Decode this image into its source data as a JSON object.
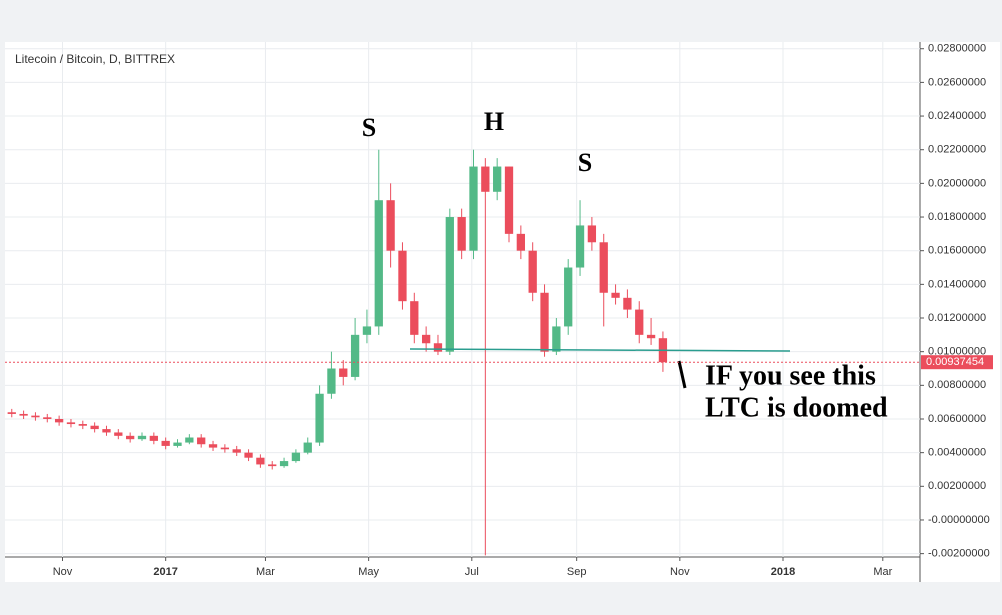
{
  "chart_data": {
    "type": "candlestick",
    "title": "Litecoin / Bitcoin, D, BITTREX",
    "x": [
      -91,
      -84,
      -77,
      -70,
      -63,
      -56,
      -49,
      -42,
      -35,
      -28,
      -21,
      -14,
      -7,
      0,
      7,
      14,
      21,
      28,
      35,
      42,
      49,
      56,
      63,
      70,
      77,
      84,
      91,
      98,
      105,
      112,
      119,
      126,
      133,
      140,
      147,
      154,
      161,
      168,
      175,
      182,
      189,
      196,
      203,
      210,
      217,
      224,
      231,
      238,
      245,
      252,
      259,
      266,
      273,
      280,
      287,
      294
    ],
    "open": [
      0.0064,
      0.0063,
      0.0062,
      0.0061,
      0.006,
      0.0058,
      0.0057,
      0.0056,
      0.0054,
      0.0052,
      0.005,
      0.0048,
      0.005,
      0.0047,
      0.0044,
      0.0046,
      0.0049,
      0.0045,
      0.0043,
      0.0042,
      0.004,
      0.0037,
      0.0033,
      0.0032,
      0.0035,
      0.004,
      0.0046,
      0.0075,
      0.009,
      0.0085,
      0.011,
      0.0115,
      0.019,
      0.016,
      0.013,
      0.011,
      0.0105,
      0.01,
      0.018,
      0.016,
      0.021,
      0.0195,
      0.021,
      0.017,
      0.016,
      0.0135,
      0.01,
      0.0115,
      0.015,
      0.0175,
      0.0165,
      0.0135,
      0.0132,
      0.0125,
      0.011,
      0.0108
    ],
    "high": [
      0.0066,
      0.0065,
      0.0064,
      0.0063,
      0.0062,
      0.006,
      0.0059,
      0.0058,
      0.0056,
      0.0054,
      0.0052,
      0.0052,
      0.0052,
      0.0049,
      0.0048,
      0.0051,
      0.0051,
      0.0047,
      0.0045,
      0.0044,
      0.0042,
      0.0039,
      0.0035,
      0.0037,
      0.0042,
      0.0049,
      0.008,
      0.01,
      0.0095,
      0.012,
      0.0125,
      0.022,
      0.02,
      0.0165,
      0.0135,
      0.0115,
      0.011,
      0.0185,
      0.0185,
      0.022,
      0.0215,
      0.0215,
      0.021,
      0.0175,
      0.0165,
      0.014,
      0.012,
      0.0155,
      0.019,
      0.018,
      0.017,
      0.014,
      0.0137,
      0.013,
      0.012,
      0.0112
    ],
    "low": [
      0.0061,
      0.006,
      0.0059,
      0.0058,
      0.0056,
      0.0055,
      0.0054,
      0.0052,
      0.005,
      0.0048,
      0.0046,
      0.0047,
      0.0045,
      0.0042,
      0.0043,
      0.0045,
      0.0043,
      0.0041,
      0.004,
      0.0038,
      0.0035,
      0.0031,
      0.003,
      0.0031,
      0.0034,
      0.0039,
      0.0044,
      0.0072,
      0.008,
      0.0083,
      0.0105,
      0.011,
      0.015,
      0.0125,
      0.0105,
      0.01,
      0.0098,
      0.0098,
      0.0155,
      0.0155,
      -0.0021,
      0.019,
      0.0165,
      0.0155,
      0.013,
      0.0097,
      0.0098,
      0.011,
      0.0145,
      0.016,
      0.0115,
      0.0128,
      0.012,
      0.0105,
      0.0104,
      0.0088
    ],
    "close": [
      0.0063,
      0.0062,
      0.0061,
      0.006,
      0.0058,
      0.0057,
      0.0056,
      0.0054,
      0.0052,
      0.005,
      0.0048,
      0.005,
      0.0047,
      0.0044,
      0.0046,
      0.0049,
      0.0045,
      0.0043,
      0.0042,
      0.004,
      0.0037,
      0.0033,
      0.0032,
      0.0035,
      0.004,
      0.0046,
      0.0075,
      0.009,
      0.0085,
      0.011,
      0.0115,
      0.019,
      0.016,
      0.013,
      0.011,
      0.0105,
      0.01,
      0.018,
      0.016,
      0.021,
      0.0195,
      0.021,
      0.017,
      0.016,
      0.0135,
      0.01,
      0.0115,
      0.015,
      0.0175,
      0.0165,
      0.0135,
      0.0132,
      0.0125,
      0.011,
      0.0108,
      0.00937454
    ],
    "up_color": "#53b987",
    "down_color": "#eb4d5c",
    "xlim": [
      -95,
      446
    ],
    "xticks": [
      {
        "value": -61,
        "label": "Nov"
      },
      {
        "value": 0,
        "label": "2017"
      },
      {
        "value": 59,
        "label": "Mar"
      },
      {
        "value": 120,
        "label": "May"
      },
      {
        "value": 181,
        "label": "Jul"
      },
      {
        "value": 243,
        "label": "Sep"
      },
      {
        "value": 304,
        "label": "Nov"
      },
      {
        "value": 365,
        "label": "2018"
      },
      {
        "value": 424,
        "label": "Mar"
      }
    ],
    "ylim": [
      -0.0022,
      0.0284
    ],
    "yticks": [
      {
        "value": -0.002,
        "label": "-0.00200000"
      },
      {
        "value": 0,
        "label": "-0.00000000"
      },
      {
        "value": 0.002,
        "label": "0.00200000"
      },
      {
        "value": 0.004,
        "label": "0.00400000"
      },
      {
        "value": 0.006,
        "label": "0.00600000"
      },
      {
        "value": 0.008,
        "label": "0.00800000"
      },
      {
        "value": 0.01,
        "label": "0.01000000"
      },
      {
        "value": 0.012,
        "label": "0.01200000"
      },
      {
        "value": 0.014,
        "label": "0.01400000"
      },
      {
        "value": 0.016,
        "label": "0.01600000"
      },
      {
        "value": 0.018,
        "label": "0.01800000"
      },
      {
        "value": 0.02,
        "label": "0.02000000"
      },
      {
        "value": 0.022,
        "label": "0.02200000"
      },
      {
        "value": 0.024,
        "label": "0.02400000"
      },
      {
        "value": 0.026,
        "label": "0.02600000"
      },
      {
        "value": 0.028,
        "label": "0.02800000"
      }
    ],
    "grid": true,
    "last_price": {
      "value": 0.00937454,
      "label": "0.00937454"
    },
    "annotations": [
      "S",
      "H",
      "S",
      "IF you see this",
      "LTC is doomed"
    ]
  }
}
